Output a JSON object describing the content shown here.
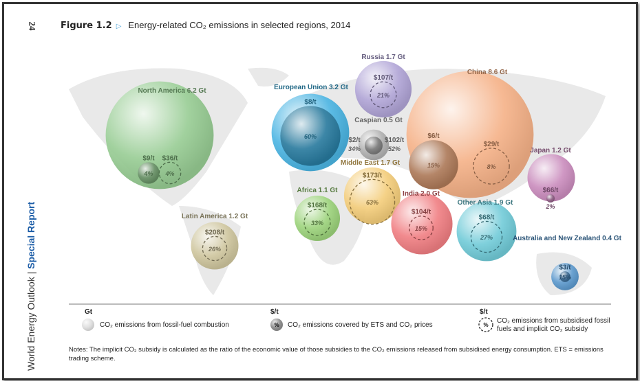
{
  "page_number": "24",
  "figure_label": "Figure 1.2",
  "figure_title": "Energy-related CO₂ emissions in selected regions, 2014",
  "side_text": {
    "publication": "World Energy Outlook",
    "separator": "|",
    "series": "Special Report"
  },
  "legend": [
    {
      "unit": "Gt",
      "text": "CO₂ emissions from fossil-fuel combustion",
      "symbol": "solid-bubble"
    },
    {
      "unit": "$/t",
      "text": "CO₂ emissions covered by ETS and CO₂ prices",
      "symbol": "dark-bubble",
      "symbol_text": "%"
    },
    {
      "unit": "$/t",
      "text": "CO₂ emissions from subsidised fossil fuels and implicit CO₂ subsidy",
      "symbol": "dashed-circle",
      "symbol_text": "%"
    }
  ],
  "notes": "Notes: The implicit CO₂ subsidy is calculated as the ratio of the economic value of those subsidies to the CO₂ emissions released from subsidised energy consumption. ETS = emissions trading scheme.",
  "chart_data": {
    "type": "bubble-map",
    "title": "Energy-related CO₂ emissions in selected regions, 2014",
    "regions": [
      {
        "label": "North America 6.2 Gt",
        "gt": 6.2,
        "color": "#8ec98a",
        "ets": {
          "price": "$9/t",
          "share": "4%"
        },
        "subsidy": {
          "price": "$36/t",
          "share": "4%"
        }
      },
      {
        "label": "European Union 3.2 Gt",
        "gt": 3.2,
        "color": "#37ade0",
        "ets": {
          "price": "$8/t",
          "share": "60%"
        }
      },
      {
        "label": "Russia 1.7 Gt",
        "gt": 1.7,
        "color": "#a99bd3",
        "subsidy": {
          "price": "$107/t",
          "share": "21%"
        }
      },
      {
        "label": "Caspian 0.5 Gt",
        "gt": 0.5,
        "color": "#aaaaaa",
        "ets": {
          "price": "$2/t",
          "share": "34%"
        },
        "subsidy": {
          "price": "$102/t",
          "share": "52%"
        }
      },
      {
        "label": "China 8.6 Gt",
        "gt": 8.6,
        "color": "#f6ab7c",
        "ets": {
          "price": "$6/t",
          "share": "15%"
        },
        "subsidy": {
          "price": "$29/t",
          "share": "8%"
        }
      },
      {
        "label": "Japan 1.2 Gt",
        "gt": 1.2,
        "color": "#c47fb6",
        "ets": {
          "price": "$66/t",
          "share": "2%"
        }
      },
      {
        "label": "Middle East 1.7 Gt",
        "gt": 1.7,
        "color": "#f3c86c",
        "subsidy": {
          "price": "$173/t",
          "share": "63%"
        }
      },
      {
        "label": "Africa 1.1 Gt",
        "gt": 1.1,
        "color": "#92cf6e",
        "subsidy": {
          "price": "$168/t",
          "share": "33%"
        }
      },
      {
        "label": "India 2.0 Gt",
        "gt": 2.0,
        "color": "#ee7074",
        "subsidy": {
          "price": "$104/t",
          "share": "15%"
        }
      },
      {
        "label": "Other Asia 1.9 Gt",
        "gt": 1.9,
        "color": "#62c5d4",
        "subsidy": {
          "price": "$68/t",
          "share": "27%"
        }
      },
      {
        "label": "Latin America 1.2 Gt",
        "gt": 1.2,
        "color": "#cbc195",
        "subsidy": {
          "price": "$208/t",
          "share": "26%"
        }
      },
      {
        "label": "Australia and New Zealand 0.4 Gt",
        "gt": 0.4,
        "color": "#4b8fc9",
        "ets": {
          "price": "$3/t",
          "share": "15%"
        }
      }
    ]
  }
}
